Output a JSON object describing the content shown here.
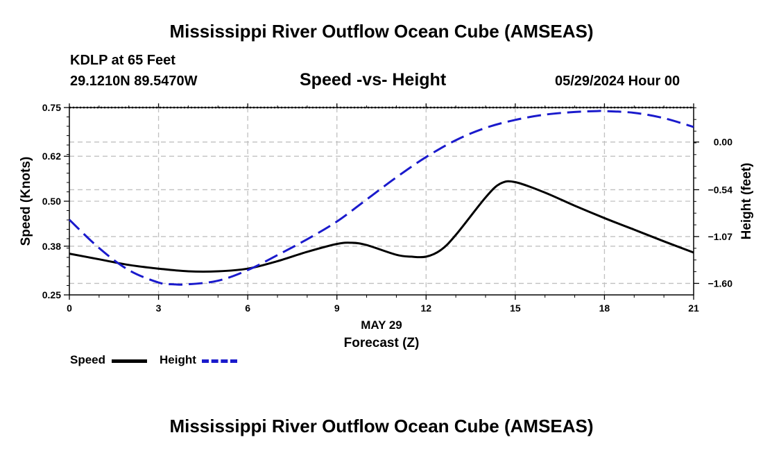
{
  "header": {
    "title": "Mississippi River Outflow Ocean Cube (AMSEAS)",
    "station": "KDLP at 65 Feet",
    "coords": "29.1210N  89.5470W",
    "subtitle": "Speed -vs- Height",
    "datetime": "05/29/2024 Hour 00"
  },
  "footer": {
    "title": "Mississippi River Outflow Ocean Cube (AMSEAS)"
  },
  "legend": {
    "speed_label": "Speed",
    "height_label": "Height"
  },
  "colors": {
    "speed": "#000000",
    "height": "#1a1acc",
    "grid": "#c0c0c0"
  },
  "chart_data": {
    "type": "line",
    "title": "Speed -vs- Height",
    "xlabel": "Forecast (Z)",
    "xlabel_date": "MAY 29",
    "ylabel_left": "Speed (Knots)",
    "ylabel_right": "Height (feet)",
    "xlim": [
      0,
      21
    ],
    "ylim_left": [
      0.25,
      0.75
    ],
    "ylim_right": [
      -1.73,
      0.39
    ],
    "x_ticks": [
      0,
      3,
      6,
      9,
      12,
      15,
      18,
      21
    ],
    "x_tick_labels": [
      "0",
      "3",
      "6",
      "9",
      "12",
      "15",
      "18",
      "21"
    ],
    "y_left_ticks": [
      0.25,
      0.38,
      0.5,
      0.62,
      0.75
    ],
    "y_left_tick_labels": [
      "0.25",
      "0.38",
      "0.50",
      "0.62",
      "0.75"
    ],
    "y_right_ticks": [
      -1.6,
      -1.07,
      -0.54,
      0.0
    ],
    "y_right_tick_labels": [
      "−1.60",
      "−1.07",
      "−0.54",
      "0.00"
    ],
    "grid": true,
    "series": [
      {
        "name": "Speed",
        "axis": "left",
        "style": "solid",
        "x": [
          0,
          1,
          2,
          3,
          4,
          5,
          6,
          7,
          8,
          9,
          9.5,
          10,
          11,
          11.5,
          12,
          12.5,
          13,
          14,
          14.5,
          15,
          16,
          17,
          18,
          19,
          20,
          21
        ],
        "values": [
          0.36,
          0.345,
          0.33,
          0.32,
          0.313,
          0.313,
          0.32,
          0.34,
          0.365,
          0.386,
          0.389,
          0.383,
          0.357,
          0.352,
          0.352,
          0.37,
          0.41,
          0.51,
          0.547,
          0.551,
          0.523,
          0.488,
          0.455,
          0.424,
          0.393,
          0.363
        ]
      },
      {
        "name": "Height",
        "axis": "right",
        "style": "dashed",
        "x": [
          0,
          1,
          2,
          3,
          3.5,
          4,
          5,
          6,
          7,
          8,
          9,
          10,
          11,
          12,
          13,
          14,
          15,
          16,
          17,
          17.75,
          18,
          19,
          20,
          21
        ],
        "values": [
          -0.88,
          -1.2,
          -1.45,
          -1.59,
          -1.61,
          -1.61,
          -1.57,
          -1.45,
          -1.28,
          -1.1,
          -0.9,
          -0.65,
          -0.4,
          -0.17,
          0.02,
          0.16,
          0.25,
          0.31,
          0.34,
          0.35,
          0.35,
          0.33,
          0.27,
          0.17
        ]
      }
    ]
  }
}
